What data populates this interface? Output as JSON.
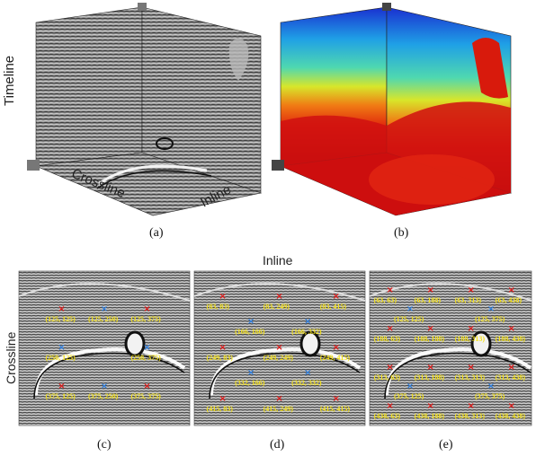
{
  "figure": {
    "captions": {
      "a": "(a)",
      "b": "(b)",
      "c": "(c)",
      "d": "(d)",
      "e": "(e)"
    },
    "axes": {
      "timeline": "Timeline",
      "crossline": "Crossline",
      "inline": "Inline",
      "top_inline": "Inline",
      "side_crossline": "Crossline"
    },
    "panel_c": {
      "points": [
        {
          "label": "(125, 125)",
          "color": "red"
        },
        {
          "label": "(125, 250)",
          "color": "blue"
        },
        {
          "label": "(125, 375)",
          "color": "red"
        },
        {
          "label": "(250, 125)",
          "color": "blue"
        },
        {
          "label": "(250, 375)",
          "color": "blue"
        },
        {
          "label": "(375, 125)",
          "color": "red"
        },
        {
          "label": "(375, 250)",
          "color": "blue"
        },
        {
          "label": "(375, 375)",
          "color": "red"
        }
      ]
    },
    "panel_d": {
      "points": [
        {
          "label": "(83, 83)",
          "color": "red"
        },
        {
          "label": "(83, 249)",
          "color": "red"
        },
        {
          "label": "(83, 415)",
          "color": "red"
        },
        {
          "label": "(166, 166)",
          "color": "blue"
        },
        {
          "label": "(166, 332)",
          "color": "blue"
        },
        {
          "label": "(249, 83)",
          "color": "red"
        },
        {
          "label": "(249, 249)",
          "color": "red"
        },
        {
          "label": "(249, 415)",
          "color": "red"
        },
        {
          "label": "(332, 166)",
          "color": "blue"
        },
        {
          "label": "(332, 332)",
          "color": "blue"
        },
        {
          "label": "(415, 83)",
          "color": "red"
        },
        {
          "label": "(415, 249)",
          "color": "red"
        },
        {
          "label": "(415, 415)",
          "color": "red"
        }
      ]
    },
    "panel_e": {
      "points": [
        {
          "label": "(63, 63)",
          "color": "red"
        },
        {
          "label": "(63, 188)",
          "color": "red"
        },
        {
          "label": "(63, 313)",
          "color": "red"
        },
        {
          "label": "(63, 438)",
          "color": "red"
        },
        {
          "label": "(125, 125)",
          "color": "blue"
        },
        {
          "label": "(125, 375)",
          "color": "blue"
        },
        {
          "label": "(188, 63)",
          "color": "red"
        },
        {
          "label": "(188, 188)",
          "color": "red"
        },
        {
          "label": "(188, 313)",
          "color": "red"
        },
        {
          "label": "(188, 438)",
          "color": "red"
        },
        {
          "label": "(313, 63)",
          "color": "red"
        },
        {
          "label": "(313, 188)",
          "color": "red"
        },
        {
          "label": "(313, 313)",
          "color": "red"
        },
        {
          "label": "(313, 438)",
          "color": "red"
        },
        {
          "label": "(375, 125)",
          "color": "blue"
        },
        {
          "label": "(375, 375)",
          "color": "blue"
        },
        {
          "label": "(438, 63)",
          "color": "red"
        },
        {
          "label": "(438, 188)",
          "color": "red"
        },
        {
          "label": "(438, 313)",
          "color": "red"
        },
        {
          "label": "(438, 438)",
          "color": "red"
        }
      ]
    }
  }
}
